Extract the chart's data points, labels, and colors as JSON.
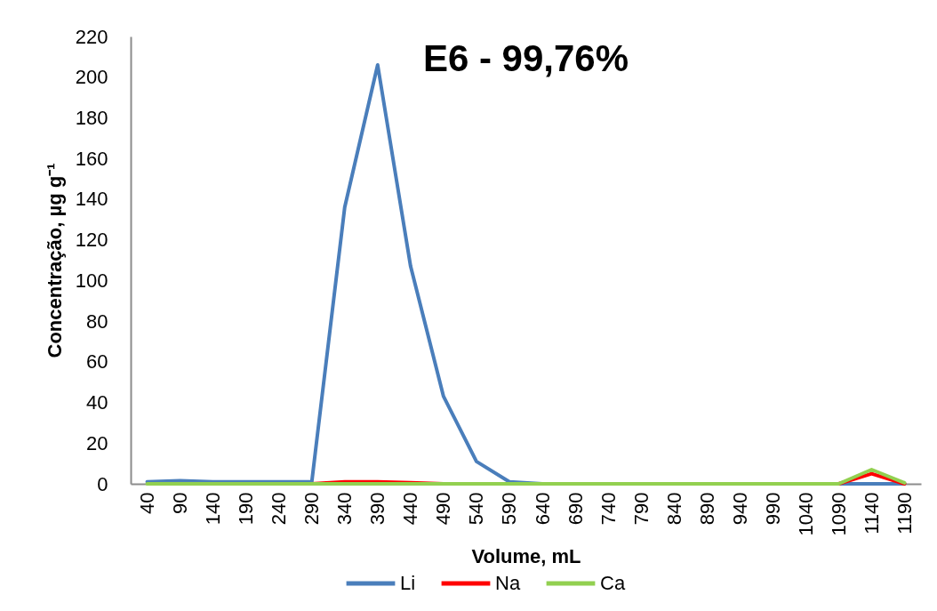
{
  "chart_data": {
    "type": "line",
    "title": "E6 - 99,76%",
    "xlabel": "Volume, mL",
    "ylabel": "Concentração, µg g⁻¹",
    "categories": [
      "40",
      "90",
      "140",
      "190",
      "240",
      "290",
      "340",
      "390",
      "440",
      "490",
      "540",
      "590",
      "640",
      "690",
      "740",
      "790",
      "840",
      "890",
      "940",
      "990",
      "1040",
      "1090",
      "1140",
      "1190"
    ],
    "series": [
      {
        "name": "Li",
        "color": "#4a7ebb",
        "values": [
          1,
          1.5,
          1,
          1,
          1,
          1,
          136,
          206,
          107,
          43,
          11,
          1,
          0,
          0,
          0,
          0,
          0,
          0,
          0,
          0,
          0,
          0,
          0,
          0
        ]
      },
      {
        "name": "Na",
        "color": "#ff0000",
        "values": [
          null,
          null,
          null,
          null,
          null,
          0,
          1,
          1,
          0.5,
          0,
          null,
          null,
          null,
          null,
          null,
          null,
          null,
          null,
          null,
          null,
          null,
          0,
          5,
          0
        ]
      },
      {
        "name": "Ca",
        "color": "#92d050",
        "values": [
          0,
          0,
          0,
          0,
          0,
          0,
          0,
          0,
          0,
          0,
          0,
          0,
          0,
          0,
          0,
          0,
          0,
          0,
          0,
          0,
          0,
          0,
          7,
          0.5
        ]
      }
    ],
    "ylim": [
      0,
      220
    ],
    "yticks": [
      0,
      20,
      40,
      60,
      80,
      100,
      120,
      140,
      160,
      180,
      200,
      220
    ],
    "grid": false,
    "legend": "bottom",
    "line_style": "solid"
  }
}
